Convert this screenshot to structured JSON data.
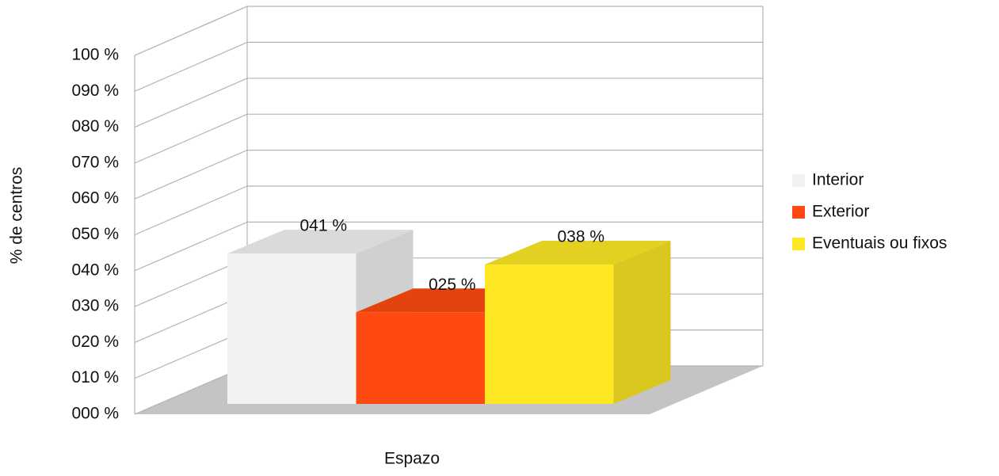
{
  "chart_data": {
    "type": "bar3d",
    "x_label": "Espazo",
    "y_label": "% de centros",
    "series": [
      {
        "name": "Interior",
        "color": "#f2f2f2",
        "values": [
          41
        ],
        "value_labels": [
          "041 %"
        ]
      },
      {
        "name": "Exterior",
        "color": "#fe4a10",
        "values": [
          25
        ],
        "value_labels": [
          "025 %"
        ]
      },
      {
        "name": "Eventuais ou fixos",
        "color": "#fde724",
        "values": [
          38
        ],
        "value_labels": [
          "038 %"
        ]
      }
    ],
    "ylim": [
      0,
      100
    ],
    "yticks": [
      {
        "value": 0,
        "label": "000 %"
      },
      {
        "value": 10,
        "label": "010 %"
      },
      {
        "value": 20,
        "label": "020 %"
      },
      {
        "value": 30,
        "label": "030 %"
      },
      {
        "value": 40,
        "label": "040 %"
      },
      {
        "value": 50,
        "label": "050 %"
      },
      {
        "value": 60,
        "label": "060 %"
      },
      {
        "value": 70,
        "label": "070 %"
      },
      {
        "value": 80,
        "label": "080 %"
      },
      {
        "value": 90,
        "label": "090 %"
      },
      {
        "value": 100,
        "label": "100 %"
      }
    ],
    "grid": true,
    "legend": "right"
  }
}
